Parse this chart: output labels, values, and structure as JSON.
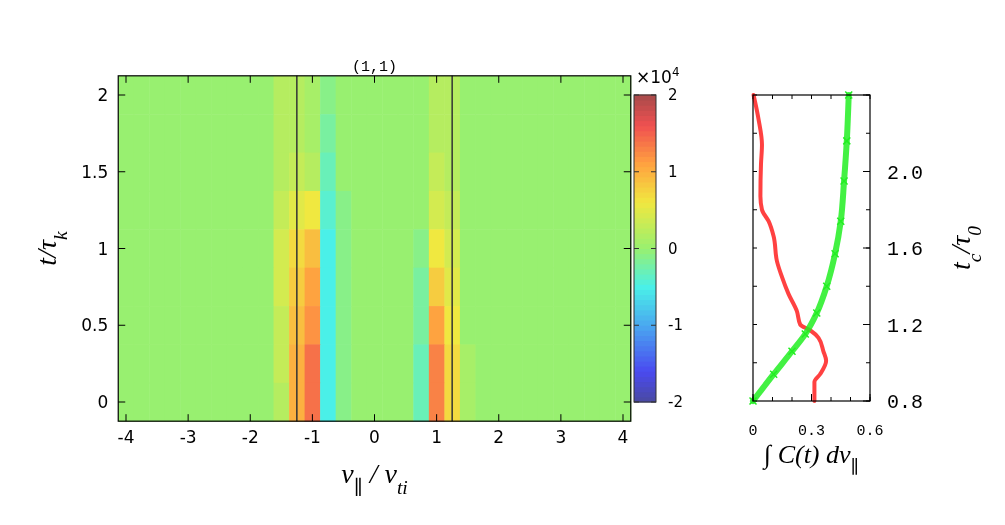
{
  "chart_data": [
    {
      "type": "heatmap",
      "title": "(1,1)",
      "xlabel": "v$_{∥}$ / v$_{ti}$",
      "ylabel": "t/τ$_{k}$",
      "clabel": "×10$^{4}$",
      "categories": [
        "-4",
        null,
        null,
        null,
        "-3",
        null,
        null,
        null,
        "-2",
        null,
        null,
        null,
        "-1",
        null,
        null,
        null,
        "0",
        null,
        null,
        null,
        "1",
        null,
        null,
        null,
        "2",
        null,
        null,
        null,
        "3",
        null,
        null,
        null,
        "4"
      ],
      "y_categories": [
        "2",
        null,
        "1.5",
        null,
        "1",
        null,
        "0.5",
        null,
        "0"
      ],
      "clim": [
        -2,
        2
      ],
      "cticks": [
        -2,
        -1,
        0,
        1,
        2
      ],
      "cells": [
        [
          0,
          0,
          0,
          0,
          0,
          0,
          0,
          0,
          0,
          0,
          0.2,
          0.2,
          0.1,
          -0.1,
          0,
          0,
          0,
          0,
          0,
          0,
          0.2,
          0.2,
          0,
          0,
          0,
          0,
          0,
          0,
          0,
          0,
          0,
          0,
          0
        ],
        [
          0,
          0,
          0,
          0,
          0,
          0,
          0,
          0,
          0,
          0,
          0.2,
          0.2,
          0.1,
          -0.2,
          0,
          0,
          0,
          0,
          0,
          0,
          0.2,
          0.2,
          0,
          0,
          0,
          0,
          0,
          0,
          0,
          0,
          0,
          0,
          0
        ],
        [
          0,
          0,
          0,
          0,
          0,
          0,
          0,
          0,
          0,
          0,
          0.2,
          0.3,
          0.2,
          -0.3,
          0,
          0,
          0,
          0,
          0,
          0,
          0.3,
          0.2,
          0,
          0,
          0,
          0,
          0,
          0,
          0,
          0,
          0,
          0,
          0
        ],
        [
          0,
          0,
          0,
          0,
          0,
          0,
          0,
          0,
          0,
          0,
          0.3,
          0.5,
          0.6,
          -0.4,
          -0.1,
          0,
          0,
          0,
          0,
          0,
          0.4,
          0.3,
          0,
          0,
          0,
          0,
          0,
          0,
          0,
          0,
          0,
          0,
          0
        ],
        [
          0,
          0,
          0,
          0,
          0,
          0,
          0,
          0,
          0,
          0,
          0.4,
          0.7,
          0.9,
          -0.5,
          -0.1,
          0,
          0,
          0,
          0,
          -0.1,
          0.6,
          0.4,
          0,
          0,
          0,
          0,
          0,
          0,
          0,
          0,
          0,
          0,
          0
        ],
        [
          0,
          0,
          0,
          0,
          0,
          0,
          0,
          0,
          0,
          0,
          0.4,
          0.8,
          1.1,
          -0.5,
          -0.1,
          0,
          0,
          0,
          0,
          -0.2,
          0.8,
          0.5,
          0,
          0,
          0,
          0,
          0,
          0,
          0,
          0,
          0,
          0,
          0
        ],
        [
          0,
          0,
          0,
          0,
          0,
          0,
          0,
          0,
          0,
          0,
          0.3,
          0.9,
          1.2,
          -0.5,
          -0.1,
          0,
          0,
          0,
          0,
          -0.2,
          1.1,
          0.6,
          0,
          0,
          0,
          0,
          0,
          0,
          0,
          0,
          0,
          0,
          0
        ],
        [
          0,
          0,
          0,
          0,
          0,
          0,
          0,
          0,
          0,
          0,
          0.3,
          1,
          1.4,
          -0.5,
          -0.1,
          0,
          0,
          0,
          0,
          -0.3,
          1.3,
          0.7,
          0.1,
          0,
          0,
          0,
          0,
          0,
          0,
          0,
          0,
          0,
          0
        ],
        [
          0,
          0,
          0,
          0,
          0,
          0,
          0,
          0,
          0,
          0,
          0.2,
          1,
          1.4,
          -0.5,
          -0.1,
          0,
          0,
          0,
          0,
          -0.3,
          1.3,
          0.7,
          0.1,
          0,
          0,
          0,
          0,
          0,
          0,
          0,
          0,
          0,
          0
        ]
      ]
    },
    {
      "type": "line",
      "xlabel": "∫ C(t) dv$_{∥}$",
      "ylabel": "t$_{c}$/τ$_{0}$",
      "xlim": [
        0,
        0.6
      ],
      "xticks": [
        0,
        0.3,
        0.6
      ],
      "ylim": [
        0.8,
        2.4
      ],
      "yticks": [
        {
          "value": 0.8,
          "label": "0.8"
        },
        {
          "value": 1.2,
          "label": "1.2"
        },
        {
          "value": 1.6,
          "label": "1.6"
        },
        {
          "value": 2,
          "label": "2.0"
        },
        {
          "value": 2.4,
          "label": null
        }
      ],
      "series": [
        {
          "color": "#ff2020",
          "marker": "none",
          "x": [
            0.315,
            0.315,
            0.344,
            0.375,
            0.361,
            0.336,
            0.293,
            0.242,
            0.225,
            0.182,
            0.148,
            0.123,
            0.106,
            0.08,
            0.046,
            0.038,
            0.041,
            0.046,
            0.029,
            0.003
          ],
          "values": [
            0.8,
            0.9,
            0.94,
            1.01,
            1.06,
            1.13,
            1.17,
            1.2,
            1.27,
            1.36,
            1.45,
            1.53,
            1.66,
            1.74,
            1.8,
            1.87,
            2.04,
            2.14,
            2.27,
            2.4
          ]
        },
        {
          "color": "#22ee22",
          "marker": "cross",
          "x": [
            0,
            0.106,
            0.2,
            0.268,
            0.327,
            0.378,
            0.421,
            0.45,
            0.467,
            0.481,
            0.491
          ],
          "values": [
            0.8,
            0.94,
            1.06,
            1.15,
            1.26,
            1.4,
            1.57,
            1.74,
            1.95,
            2.16,
            2.4
          ]
        }
      ]
    }
  ]
}
